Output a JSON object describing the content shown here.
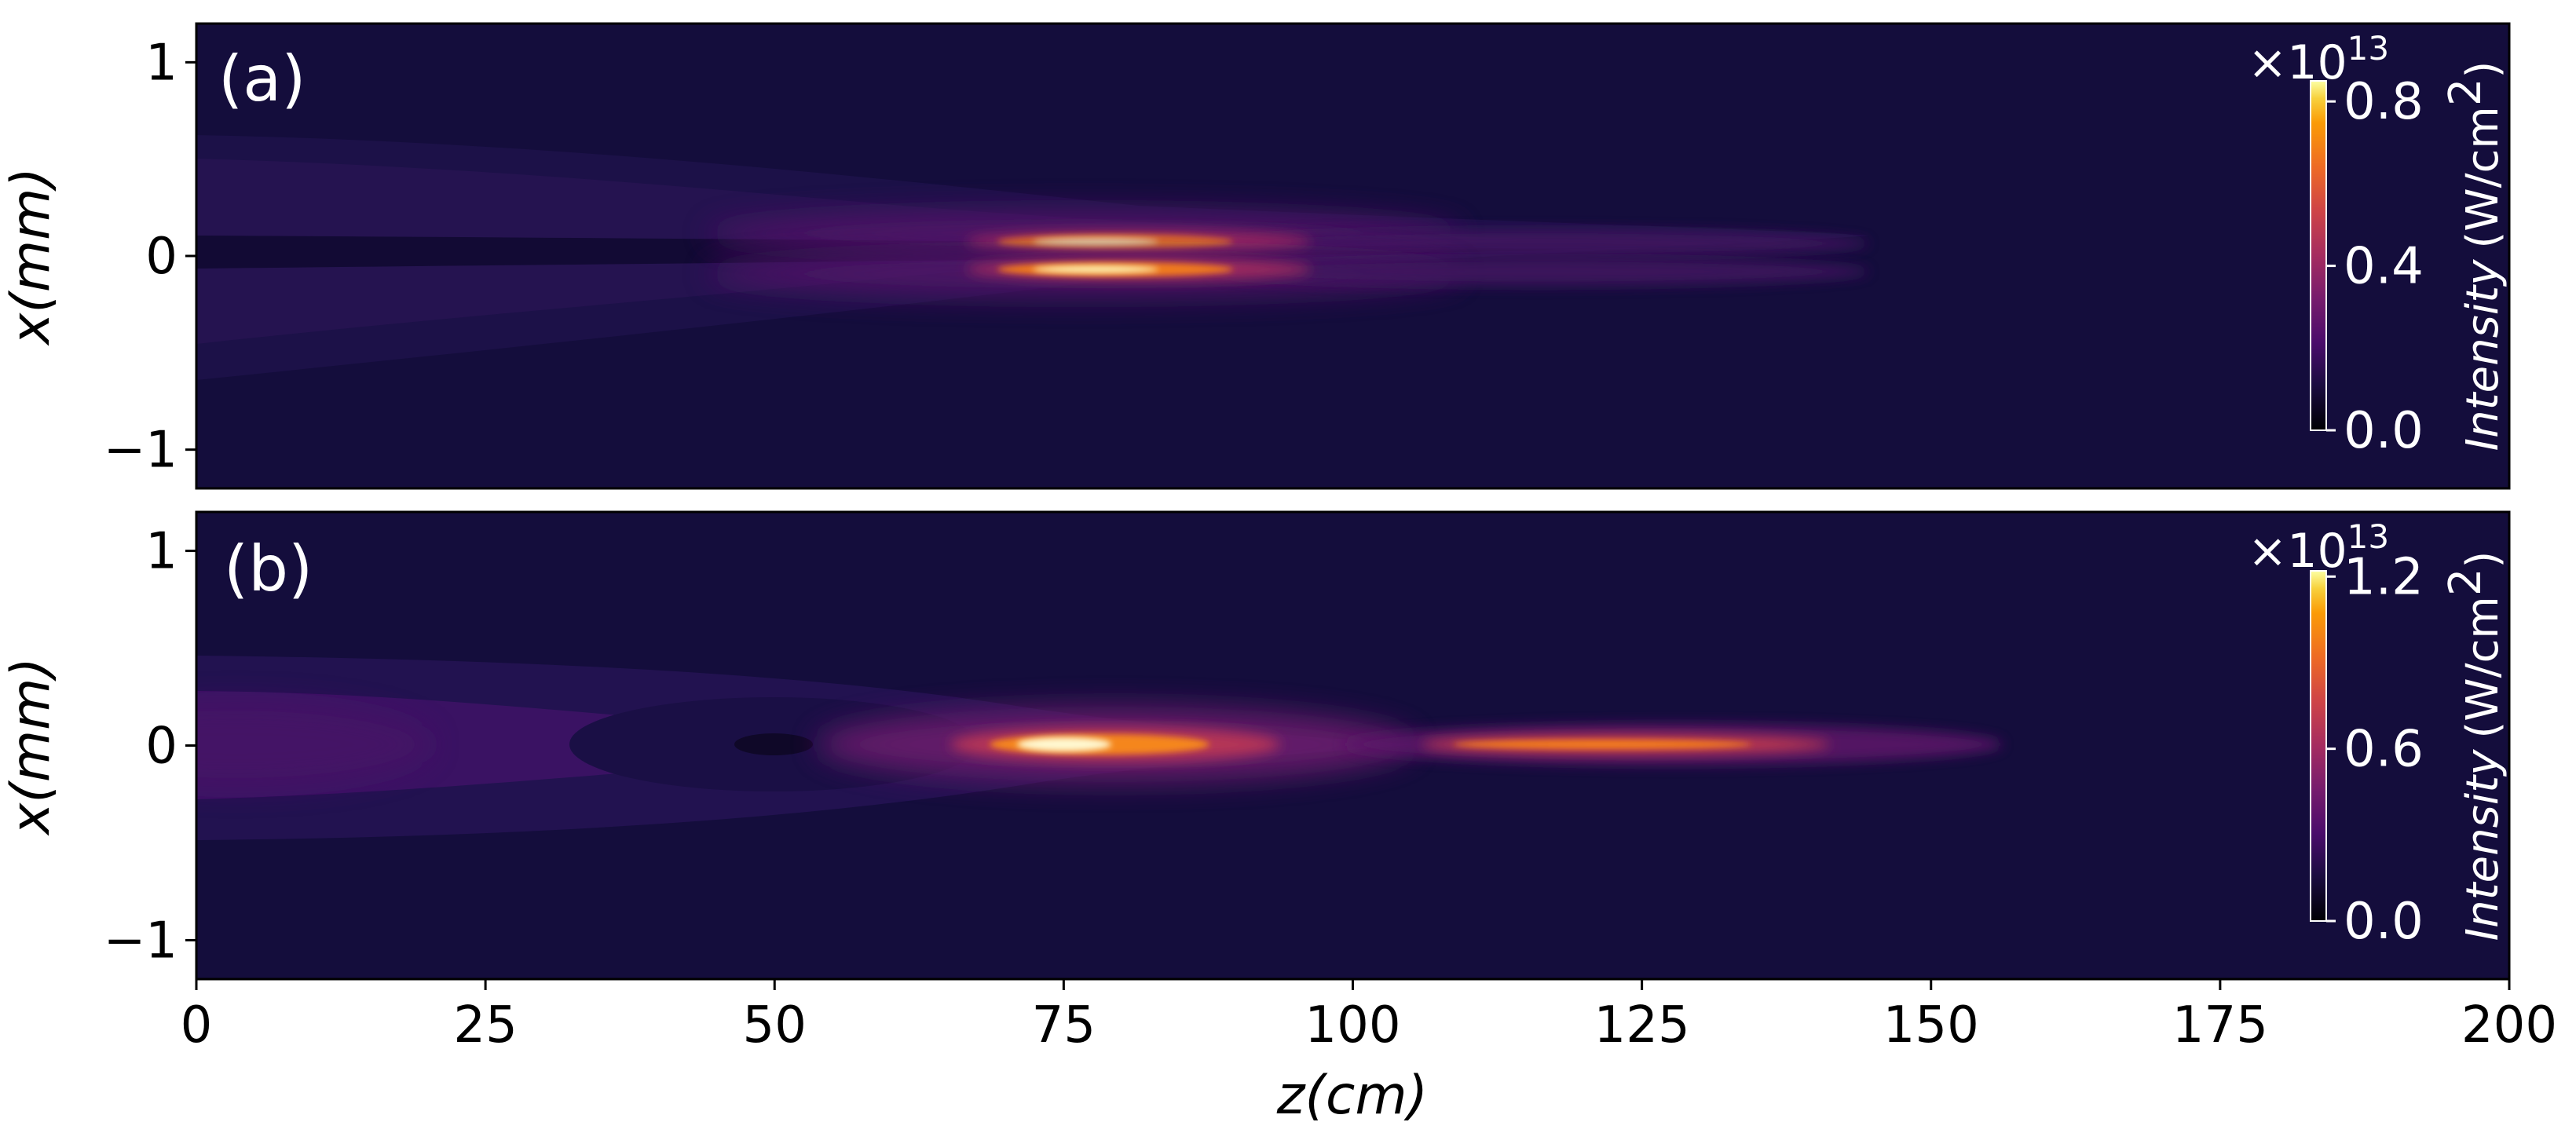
{
  "chart_data": [
    {
      "type": "heatmap",
      "panel_label": "(a)",
      "xlim": [
        0,
        200
      ],
      "ylim": [
        -1.2,
        1.2
      ],
      "ylabel": "x(mm)",
      "xlabel": "",
      "y_ticks": [
        "1",
        "0",
        "−1"
      ],
      "y_tick_values": [
        1,
        0,
        -1
      ],
      "colormap": "inferno",
      "colorbar": {
        "label_italic": "Intensity",
        "label_units": "(W/cm",
        "label_sup": "2",
        "label_close": ")",
        "scale_prefix": "×10",
        "scale_exp": "13",
        "ticks": [
          "0.0",
          "0.4",
          "0.8"
        ],
        "tick_values": [
          0.0,
          0.4,
          0.8
        ],
        "max": 0.85
      },
      "structure": "two off-axis filaments at x ≈ ±0.08 mm, peak near z ≈ 72–80 cm, extending to z ≈ 145 cm; weak outer wings |x| up to ≈ 0.6 mm for z < 60 cm"
    },
    {
      "type": "heatmap",
      "panel_label": "(b)",
      "xlim": [
        0,
        200
      ],
      "ylim": [
        -1.2,
        1.2
      ],
      "ylabel": "x(mm)",
      "xlabel": "z(cm)",
      "x_ticks": [
        "0",
        "25",
        "50",
        "75",
        "100",
        "125",
        "150",
        "175",
        "200"
      ],
      "x_tick_values": [
        0,
        25,
        50,
        75,
        100,
        125,
        150,
        175,
        200
      ],
      "y_ticks": [
        "1",
        "0",
        "−1"
      ],
      "y_tick_values": [
        1,
        0,
        -1
      ],
      "colormap": "inferno",
      "colorbar": {
        "label_italic": "Intensity",
        "label_units": "(W/cm",
        "label_sup": "2",
        "label_close": ")",
        "scale_prefix": "×10",
        "scale_exp": "13",
        "ticks": [
          "0.0",
          "0.6",
          "1.2"
        ],
        "tick_values": [
          0.0,
          0.6,
          1.2
        ],
        "max": 1.22
      },
      "structure": "single on-axis filament at x = 0, peak near z ≈ 72–80 cm, second segment z ≈ 100–140 cm, fading by z ≈ 155 cm; broad weak beam |x| up to ≈ 0.45 mm for z < 65 cm with a dark hole near z ≈ 50 cm"
    }
  ]
}
